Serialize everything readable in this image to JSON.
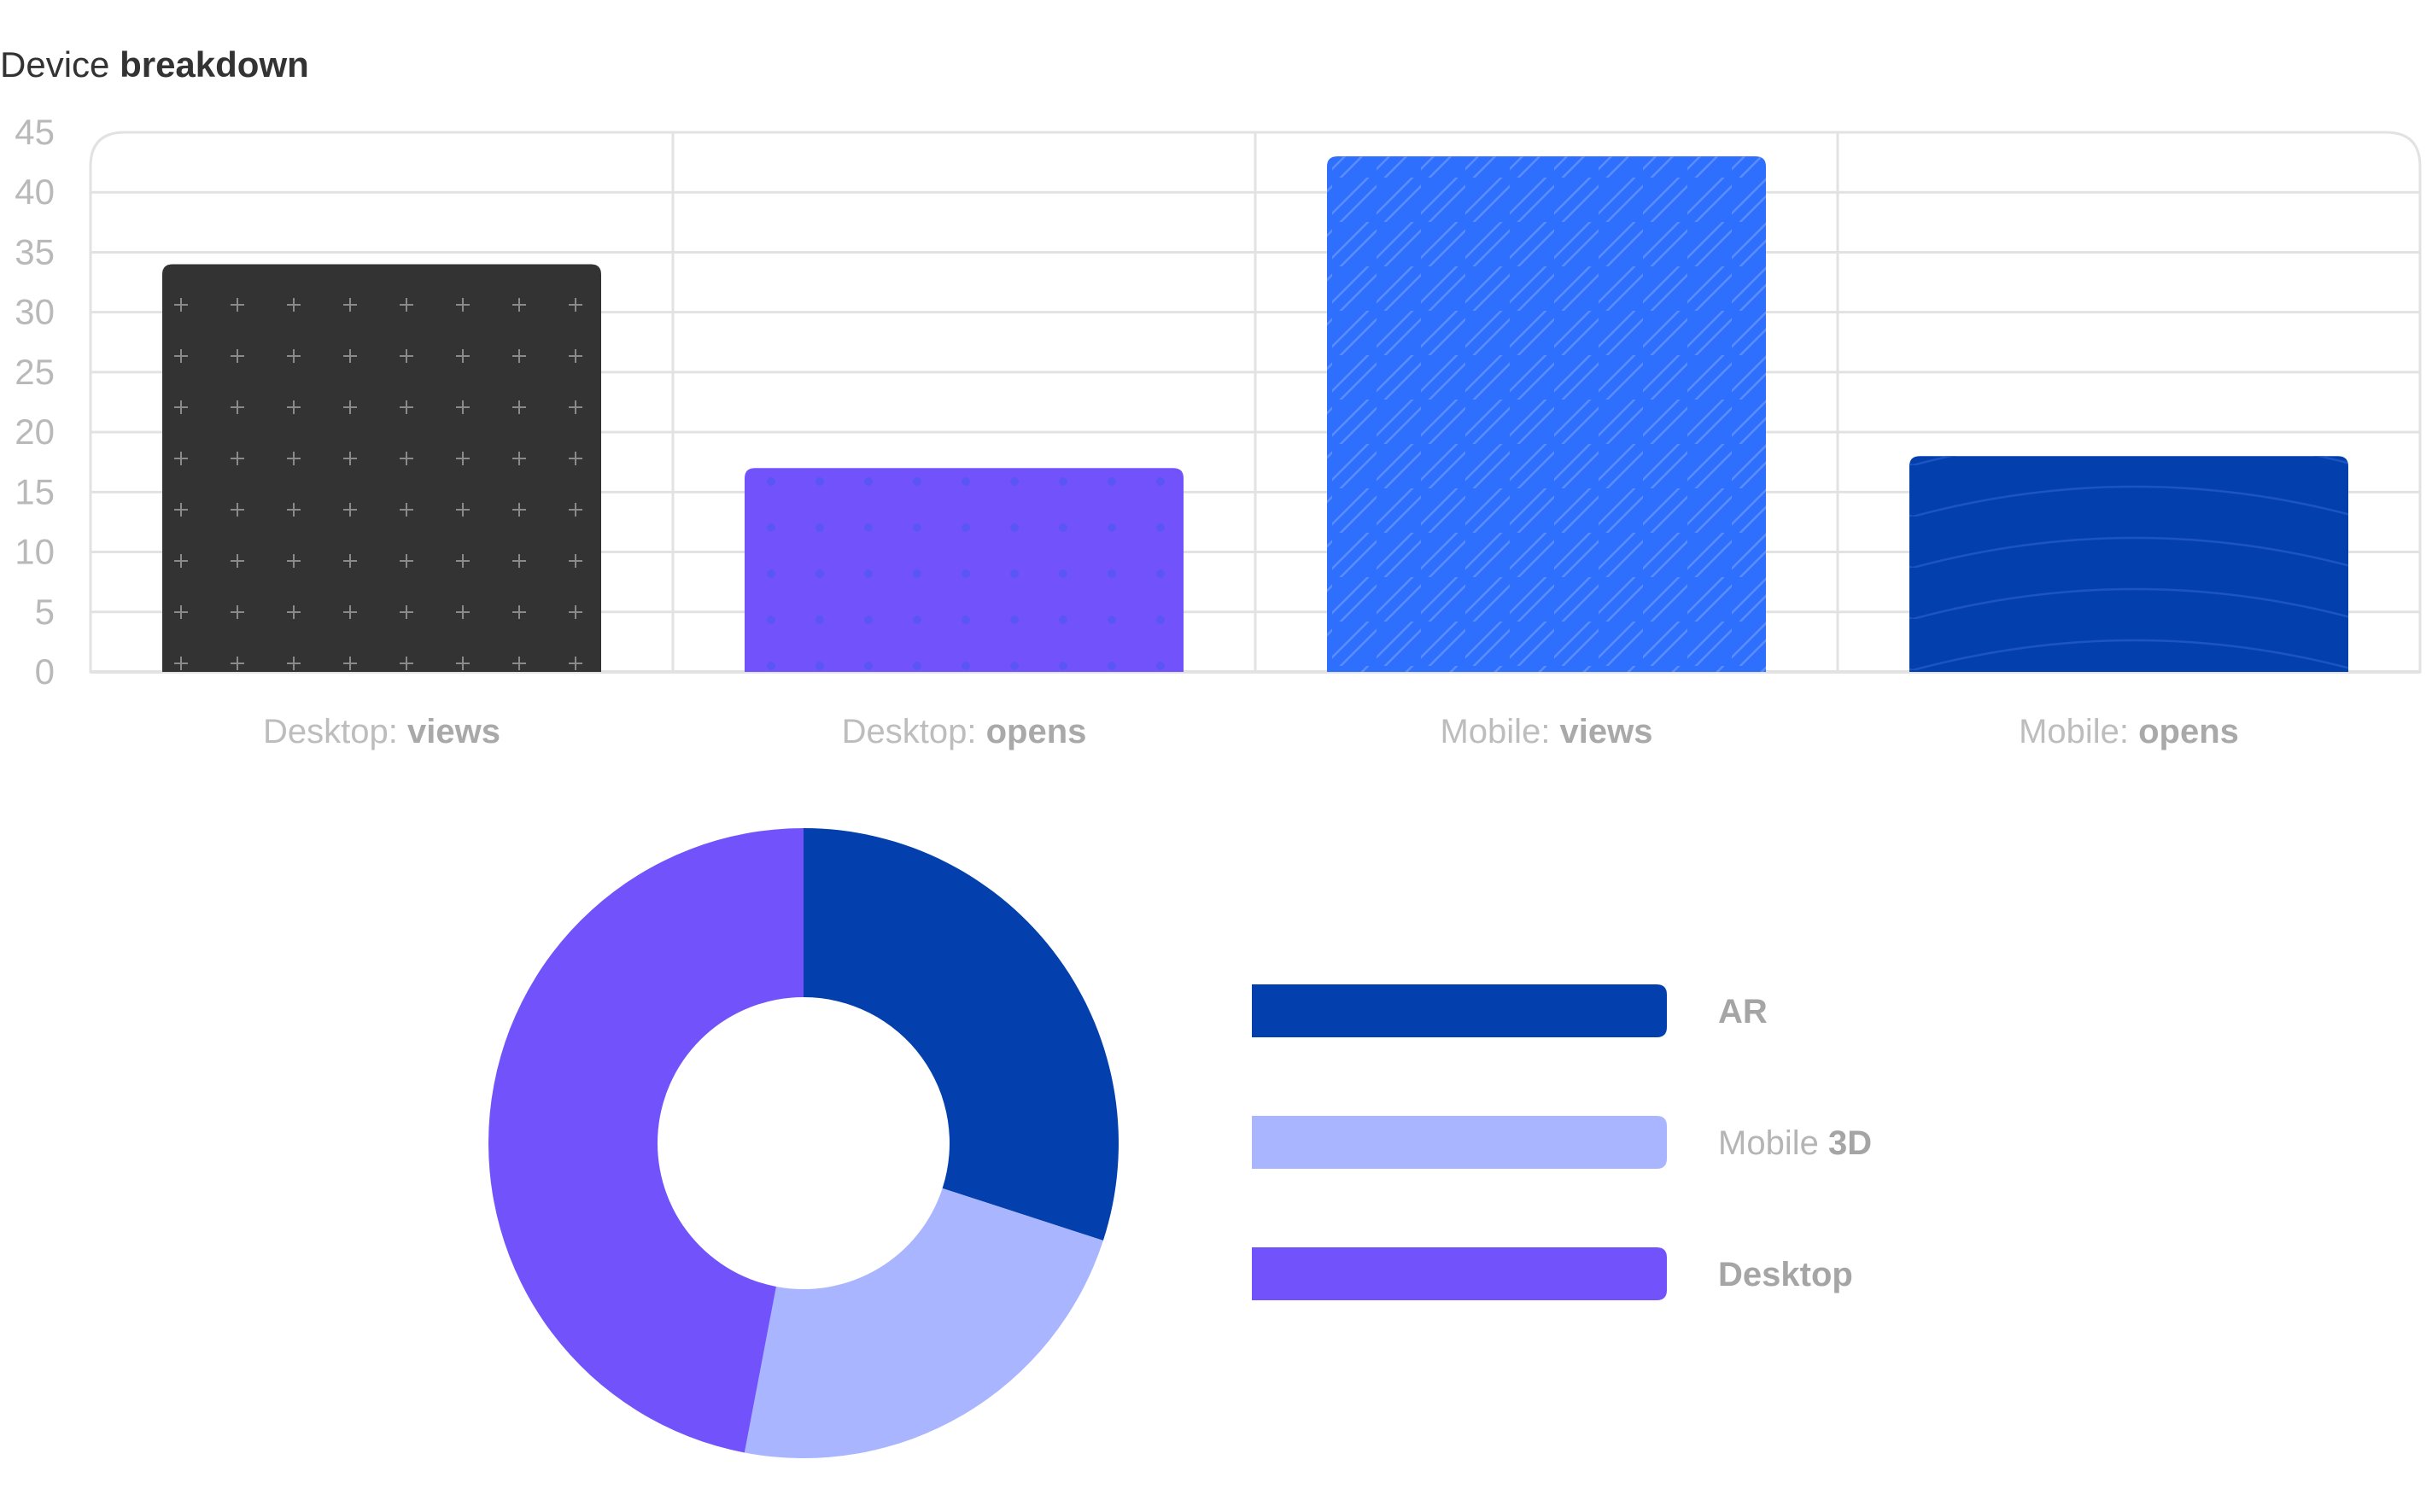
{
  "title": {
    "light": "Device ",
    "bold": "breakdown"
  },
  "chart_data": [
    {
      "type": "bar",
      "title": "Device breakdown",
      "categories": [
        {
          "light": "Desktop: ",
          "bold": "views"
        },
        {
          "light": "Desktop: ",
          "bold": "opens"
        },
        {
          "light": "Mobile: ",
          "bold": "views"
        },
        {
          "light": "Mobile: ",
          "bold": "opens"
        }
      ],
      "values": [
        34,
        17,
        43,
        18
      ],
      "colors": [
        "#333333",
        "#7253fb",
        "#2f6ffe",
        "#0440ad"
      ],
      "patterns": [
        "plus-grid",
        "dot-grid",
        "zigzag-lines",
        "concentric-arcs"
      ],
      "yticks": [
        "0",
        "5",
        "10",
        "15",
        "20",
        "25",
        "30",
        "35",
        "40",
        "45"
      ],
      "ylim": [
        0,
        45
      ],
      "grid": true
    },
    {
      "type": "pie",
      "donut": true,
      "slices": [
        {
          "label": {
            "light": "",
            "bold": "AR"
          },
          "value": 30,
          "color": "#0440ad"
        },
        {
          "label": {
            "light": "Mobile ",
            "bold": "3D"
          },
          "value": 23,
          "color": "#a9b5ff"
        },
        {
          "label": {
            "light": "",
            "bold": "Desktop"
          },
          "value": 47,
          "color": "#7253fb"
        }
      ],
      "legend": "right"
    }
  ]
}
